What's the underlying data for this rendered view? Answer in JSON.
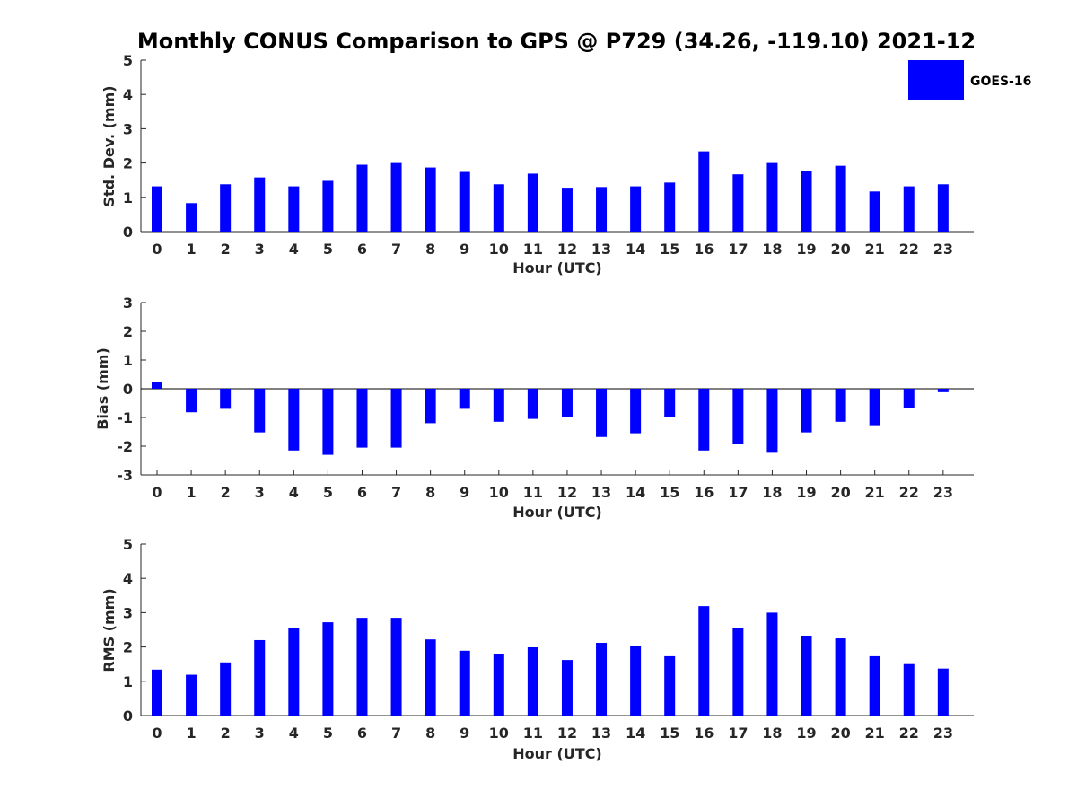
{
  "title": "Monthly CONUS Comparison to GPS @ P729 (34.26, -119.10) 2021-12",
  "legend": {
    "label": "GOES-16",
    "color": "#0000ff",
    "placement": "top-right"
  },
  "chart_data": [
    {
      "type": "bar",
      "xlabel": "Hour (UTC)",
      "ylabel": "Std. Dev. (mm)",
      "ylim": [
        0,
        5
      ],
      "yticks": [
        "0",
        "1",
        "2",
        "3",
        "4",
        "5"
      ],
      "categories": [
        "0",
        "1",
        "2",
        "3",
        "4",
        "5",
        "6",
        "7",
        "8",
        "9",
        "10",
        "11",
        "12",
        "13",
        "14",
        "15",
        "16",
        "17",
        "18",
        "19",
        "20",
        "21",
        "22",
        "23"
      ],
      "series": [
        {
          "name": "GOES-16",
          "values": [
            1.32,
            0.83,
            1.38,
            1.58,
            1.32,
            1.48,
            1.95,
            2.0,
            1.87,
            1.74,
            1.38,
            1.69,
            1.28,
            1.3,
            1.32,
            1.43,
            2.34,
            1.67,
            2.0,
            1.76,
            1.92,
            1.17,
            1.32,
            1.38
          ]
        }
      ]
    },
    {
      "type": "bar",
      "xlabel": "Hour (UTC)",
      "ylabel": "Bias (mm)",
      "ylim": [
        -3,
        3
      ],
      "yticks": [
        "-3",
        "-2",
        "-1",
        "0",
        "1",
        "2",
        "3"
      ],
      "categories": [
        "0",
        "1",
        "2",
        "3",
        "4",
        "5",
        "6",
        "7",
        "8",
        "9",
        "10",
        "11",
        "12",
        "13",
        "14",
        "15",
        "16",
        "17",
        "18",
        "19",
        "20",
        "21",
        "22",
        "23"
      ],
      "series": [
        {
          "name": "GOES-16",
          "values": [
            0.25,
            -0.82,
            -0.7,
            -1.52,
            -2.15,
            -2.3,
            -2.05,
            -2.05,
            -1.2,
            -0.7,
            -1.15,
            -1.05,
            -0.98,
            -1.68,
            -1.55,
            -0.98,
            -2.15,
            -1.93,
            -2.23,
            -1.52,
            -1.15,
            -1.27,
            -0.68,
            -0.12
          ]
        }
      ]
    },
    {
      "type": "bar",
      "xlabel": "Hour (UTC)",
      "ylabel": "RMS (mm)",
      "ylim": [
        0,
        5
      ],
      "yticks": [
        "0",
        "1",
        "2",
        "3",
        "4",
        "5"
      ],
      "categories": [
        "0",
        "1",
        "2",
        "3",
        "4",
        "5",
        "6",
        "7",
        "8",
        "9",
        "10",
        "11",
        "12",
        "13",
        "14",
        "15",
        "16",
        "17",
        "18",
        "19",
        "20",
        "21",
        "22",
        "23"
      ],
      "series": [
        {
          "name": "GOES-16",
          "values": [
            1.34,
            1.19,
            1.55,
            2.2,
            2.54,
            2.72,
            2.85,
            2.85,
            2.22,
            1.89,
            1.78,
            1.99,
            1.62,
            2.12,
            2.04,
            1.73,
            3.19,
            2.56,
            3.0,
            2.33,
            2.25,
            1.73,
            1.5,
            1.37
          ]
        }
      ]
    }
  ]
}
